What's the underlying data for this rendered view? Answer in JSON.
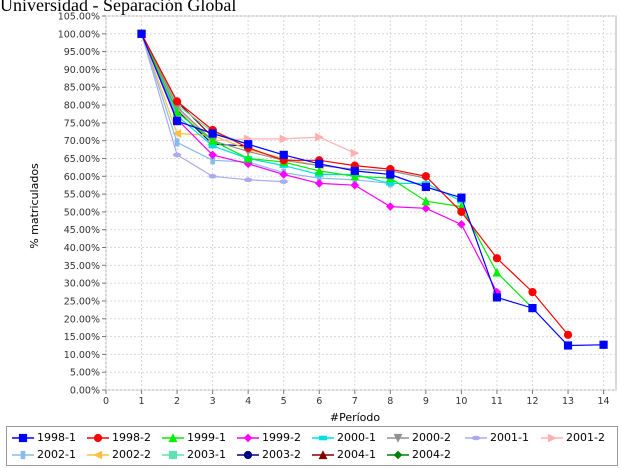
{
  "header": {
    "title": "Universidad - Separación Global"
  },
  "chart_data": {
    "type": "line",
    "title": "Universidad - Separación Global",
    "xlabel": "#Período",
    "ylabel": "% matriculados",
    "xlim": [
      0,
      14
    ],
    "ylim": [
      0,
      105
    ],
    "x_ticks": [
      "0",
      "1",
      "2",
      "3",
      "4",
      "5",
      "6",
      "7",
      "8",
      "9",
      "10",
      "11",
      "12",
      "13",
      "14"
    ],
    "y_ticks": [
      "0.00%",
      "5.00%",
      "10.00%",
      "15.00%",
      "20.00%",
      "25.00%",
      "30.00%",
      "35.00%",
      "40.00%",
      "45.00%",
      "50.00%",
      "55.00%",
      "60.00%",
      "65.00%",
      "70.00%",
      "75.00%",
      "80.00%",
      "85.00%",
      "90.00%",
      "95.00%",
      "100.00%",
      "105.00%"
    ],
    "grid": true,
    "legend_position": "bottom",
    "series": [
      {
        "name": "1998-1",
        "color": "#0000ff",
        "marker": "square",
        "x": [
          1,
          2,
          3,
          4,
          5,
          6,
          7,
          8,
          9,
          10,
          11,
          12,
          13,
          14
        ],
        "values": [
          100,
          75.5,
          72,
          69,
          66,
          63.5,
          61.5,
          60.5,
          57,
          54,
          26,
          23,
          12.5,
          12.7
        ]
      },
      {
        "name": "1998-2",
        "color": "#ff0000",
        "marker": "circle",
        "x": [
          1,
          2,
          3,
          4,
          5,
          6,
          7,
          8,
          9,
          10,
          11,
          12,
          13
        ],
        "values": [
          100,
          81,
          73,
          68,
          64.5,
          64.5,
          63,
          62,
          60,
          50,
          37,
          27.5,
          15.5
        ]
      },
      {
        "name": "1999-1",
        "color": "#00ee00",
        "marker": "triangle-up",
        "x": [
          1,
          2,
          3,
          4,
          5,
          6,
          7,
          8,
          9,
          10,
          11,
          12
        ],
        "values": [
          100,
          78,
          70,
          65,
          64,
          61.5,
          60,
          59.5,
          53,
          51.5,
          33,
          23
        ]
      },
      {
        "name": "1999-2",
        "color": "#ff00ff",
        "marker": "diamond",
        "x": [
          1,
          2,
          3,
          4,
          5,
          6,
          7,
          8,
          9,
          10,
          11
        ],
        "values": [
          100,
          76,
          66,
          63.5,
          60.5,
          58,
          57.5,
          51.5,
          51,
          46.5,
          27.5
        ]
      },
      {
        "name": "2000-1",
        "color": "#00e0e0",
        "marker": "rect",
        "x": [
          1,
          2,
          3,
          4,
          5,
          6,
          7,
          8,
          9,
          10
        ],
        "values": [
          100,
          77,
          68.5,
          65,
          63,
          60.5,
          60.5,
          58,
          58,
          53
        ]
      },
      {
        "name": "2000-2",
        "color": "#909090",
        "marker": "triangle-down",
        "x": [
          1,
          2,
          3,
          4,
          5,
          6,
          7,
          8,
          9
        ],
        "values": [
          100,
          79.5,
          70,
          67,
          64.5,
          63,
          62,
          61.5,
          59.5
        ]
      },
      {
        "name": "2001-1",
        "color": "#aaaaee",
        "marker": "ellipse",
        "x": [
          1,
          2,
          3,
          4,
          5
        ],
        "values": [
          100,
          66,
          60,
          59,
          58.5
        ]
      },
      {
        "name": "2001-2",
        "color": "#ffb0b0",
        "marker": "triangle-right",
        "x": [
          1,
          2,
          3,
          4,
          5,
          6,
          7
        ],
        "values": [
          100,
          79,
          70,
          70.5,
          70.5,
          71,
          66.5
        ]
      },
      {
        "name": "2002-1",
        "color": "#88bbee",
        "marker": "rect-vertical",
        "x": [
          1,
          2,
          3,
          4,
          5,
          6,
          7,
          8
        ],
        "values": [
          100,
          69.5,
          64.5,
          64,
          61,
          59.5,
          59,
          58
        ]
      },
      {
        "name": "2002-2",
        "color": "#ffc040",
        "marker": "triangle-left",
        "x": [
          1,
          2,
          3,
          4,
          5,
          6
        ],
        "values": [
          100,
          72,
          71.5,
          67.5,
          65,
          63
        ]
      },
      {
        "name": "2003-1",
        "color": "#60e0b0",
        "marker": "square",
        "x": [
          1,
          2,
          3,
          4,
          5
        ],
        "values": [
          100,
          80,
          72.5,
          69,
          66
        ]
      },
      {
        "name": "2003-2",
        "color": "#000080",
        "marker": "circle",
        "x": [
          1,
          2,
          3,
          4
        ],
        "values": [
          100,
          78.5,
          69,
          68.5
        ]
      },
      {
        "name": "2004-1",
        "color": "#800000",
        "marker": "triangle-up",
        "x": [
          1,
          2,
          3
        ],
        "values": [
          100,
          81,
          71
        ]
      },
      {
        "name": "2004-2",
        "color": "#008000",
        "marker": "diamond",
        "x": [
          1,
          2
        ],
        "values": [
          100,
          78.5
        ]
      }
    ]
  }
}
